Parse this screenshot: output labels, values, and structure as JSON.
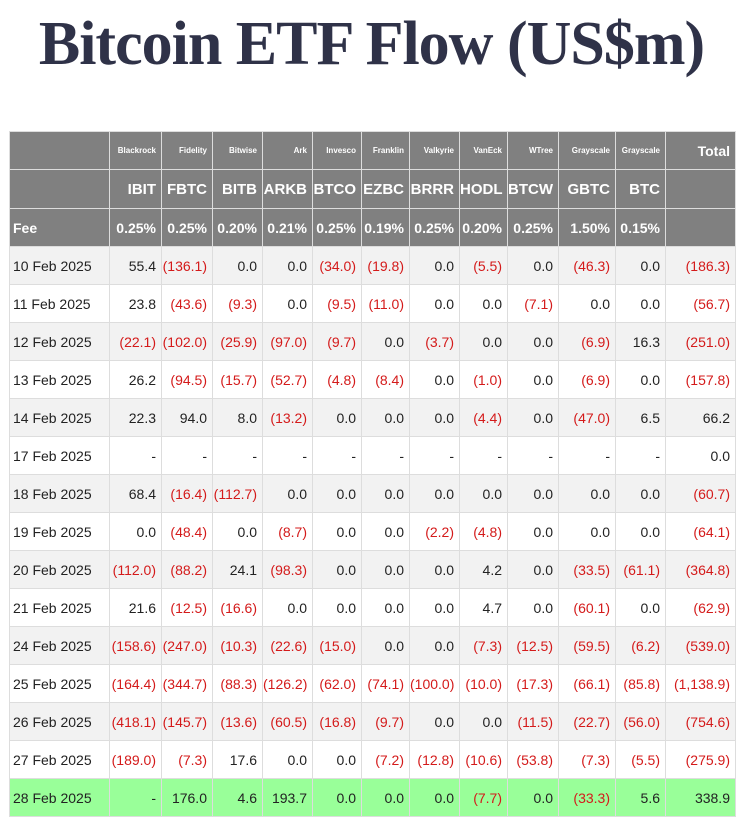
{
  "title": "Bitcoin ETF Flow (US$m)",
  "colors": {
    "header_bg": "#808080",
    "negative": "#d41a1a",
    "highlight_row": "#99ff99"
  },
  "chart_data": {
    "type": "table",
    "title": "Bitcoin ETF Flow (US$m)",
    "fee_label": "Fee",
    "total_label": "Total",
    "funds": [
      {
        "issuer": "Blackrock",
        "ticker": "IBIT",
        "fee": "0.25%"
      },
      {
        "issuer": "Fidelity",
        "ticker": "FBTC",
        "fee": "0.25%"
      },
      {
        "issuer": "Bitwise",
        "ticker": "BITB",
        "fee": "0.20%"
      },
      {
        "issuer": "Ark",
        "ticker": "ARKB",
        "fee": "0.21%"
      },
      {
        "issuer": "Invesco",
        "ticker": "BTCO",
        "fee": "0.25%"
      },
      {
        "issuer": "Franklin",
        "ticker": "EZBC",
        "fee": "0.19%"
      },
      {
        "issuer": "Valkyrie",
        "ticker": "BRRR",
        "fee": "0.25%"
      },
      {
        "issuer": "VanEck",
        "ticker": "HODL",
        "fee": "0.20%"
      },
      {
        "issuer": "WTree",
        "ticker": "BTCW",
        "fee": "0.25%"
      },
      {
        "issuer": "Grayscale",
        "ticker": "GBTC",
        "fee": "1.50%"
      },
      {
        "issuer": "Grayscale",
        "ticker": "BTC",
        "fee": "0.15%"
      }
    ],
    "rows": [
      {
        "date": "10 Feb 2025",
        "values": [
          "55.4",
          "(136.1)",
          "0.0",
          "0.0",
          "(34.0)",
          "(19.8)",
          "0.0",
          "(5.5)",
          "0.0",
          "(46.3)",
          "0.0"
        ],
        "total": "(186.3)"
      },
      {
        "date": "11 Feb 2025",
        "values": [
          "23.8",
          "(43.6)",
          "(9.3)",
          "0.0",
          "(9.5)",
          "(11.0)",
          "0.0",
          "0.0",
          "(7.1)",
          "0.0",
          "0.0"
        ],
        "total": "(56.7)"
      },
      {
        "date": "12 Feb 2025",
        "values": [
          "(22.1)",
          "(102.0)",
          "(25.9)",
          "(97.0)",
          "(9.7)",
          "0.0",
          "(3.7)",
          "0.0",
          "0.0",
          "(6.9)",
          "16.3"
        ],
        "total": "(251.0)"
      },
      {
        "date": "13 Feb 2025",
        "values": [
          "26.2",
          "(94.5)",
          "(15.7)",
          "(52.7)",
          "(4.8)",
          "(8.4)",
          "0.0",
          "(1.0)",
          "0.0",
          "(6.9)",
          "0.0"
        ],
        "total": "(157.8)"
      },
      {
        "date": "14 Feb 2025",
        "values": [
          "22.3",
          "94.0",
          "8.0",
          "(13.2)",
          "0.0",
          "0.0",
          "0.0",
          "(4.4)",
          "0.0",
          "(47.0)",
          "6.5"
        ],
        "total": "66.2"
      },
      {
        "date": "17 Feb 2025",
        "values": [
          "-",
          "-",
          "-",
          "-",
          "-",
          "-",
          "-",
          "-",
          "-",
          "-",
          "-"
        ],
        "total": "0.0"
      },
      {
        "date": "18 Feb 2025",
        "values": [
          "68.4",
          "(16.4)",
          "(112.7)",
          "0.0",
          "0.0",
          "0.0",
          "0.0",
          "0.0",
          "0.0",
          "0.0",
          "0.0"
        ],
        "total": "(60.7)"
      },
      {
        "date": "19 Feb 2025",
        "values": [
          "0.0",
          "(48.4)",
          "0.0",
          "(8.7)",
          "0.0",
          "0.0",
          "(2.2)",
          "(4.8)",
          "0.0",
          "0.0",
          "0.0"
        ],
        "total": "(64.1)"
      },
      {
        "date": "20 Feb 2025",
        "values": [
          "(112.0)",
          "(88.2)",
          "24.1",
          "(98.3)",
          "0.0",
          "0.0",
          "0.0",
          "4.2",
          "0.0",
          "(33.5)",
          "(61.1)"
        ],
        "total": "(364.8)"
      },
      {
        "date": "21 Feb 2025",
        "values": [
          "21.6",
          "(12.5)",
          "(16.6)",
          "0.0",
          "0.0",
          "0.0",
          "0.0",
          "4.7",
          "0.0",
          "(60.1)",
          "0.0"
        ],
        "total": "(62.9)"
      },
      {
        "date": "24 Feb 2025",
        "values": [
          "(158.6)",
          "(247.0)",
          "(10.3)",
          "(22.6)",
          "(15.0)",
          "0.0",
          "0.0",
          "(7.3)",
          "(12.5)",
          "(59.5)",
          "(6.2)"
        ],
        "total": "(539.0)"
      },
      {
        "date": "25 Feb 2025",
        "values": [
          "(164.4)",
          "(344.7)",
          "(88.3)",
          "(126.2)",
          "(62.0)",
          "(74.1)",
          "(100.0)",
          "(10.0)",
          "(17.3)",
          "(66.1)",
          "(85.8)"
        ],
        "total": "(1,138.9)"
      },
      {
        "date": "26 Feb 2025",
        "values": [
          "(418.1)",
          "(145.7)",
          "(13.6)",
          "(60.5)",
          "(16.8)",
          "(9.7)",
          "0.0",
          "0.0",
          "(11.5)",
          "(22.7)",
          "(56.0)"
        ],
        "total": "(754.6)"
      },
      {
        "date": "27 Feb 2025",
        "values": [
          "(189.0)",
          "(7.3)",
          "17.6",
          "0.0",
          "0.0",
          "(7.2)",
          "(12.8)",
          "(10.6)",
          "(53.8)",
          "(7.3)",
          "(5.5)"
        ],
        "total": "(275.9)"
      },
      {
        "date": "28 Feb 2025",
        "values": [
          "-",
          "176.0",
          "4.6",
          "193.7",
          "0.0",
          "0.0",
          "0.0",
          "(7.7)",
          "0.0",
          "(33.3)",
          "5.6"
        ],
        "total": "338.9",
        "highlight": true
      }
    ]
  }
}
